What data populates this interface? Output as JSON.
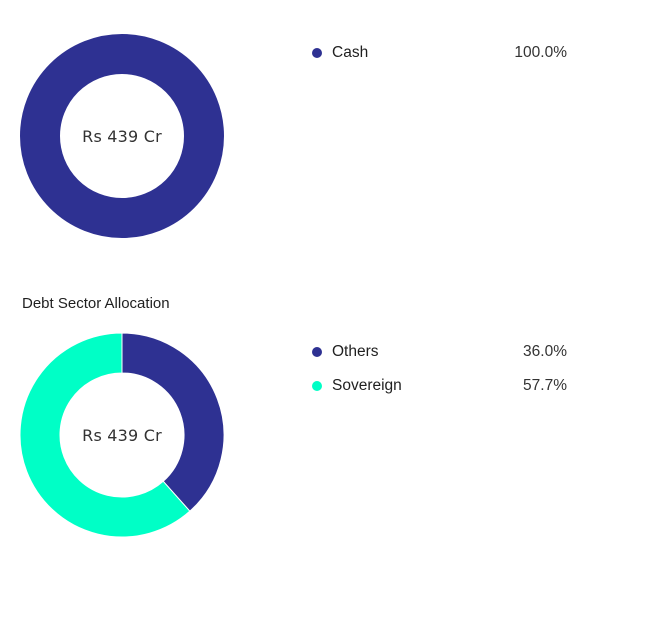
{
  "colors": {
    "navy": "#2e3192",
    "aqua": "#00ffc6",
    "background": "#ffffff"
  },
  "charts": [
    {
      "title": "",
      "center_label": "Rs 439 Cr",
      "legend": [
        {
          "label": "Cash",
          "value": "100.0%",
          "color": "#2e3192"
        }
      ]
    },
    {
      "title": "Debt Sector Allocation",
      "center_label": "Rs 439 Cr",
      "legend": [
        {
          "label": "Others",
          "value": "36.0%",
          "color": "#2e3192"
        },
        {
          "label": "Sovereign",
          "value": "57.7%",
          "color": "#00ffc6"
        }
      ]
    }
  ],
  "chart_data": [
    {
      "type": "pie",
      "variant": "donut",
      "title": "",
      "center_label": "Rs 439 Cr",
      "categories": [
        "Cash"
      ],
      "values": [
        100.0
      ],
      "colors": [
        "#2e3192"
      ],
      "legend_position": "right"
    },
    {
      "type": "pie",
      "variant": "donut",
      "title": "Debt Sector Allocation",
      "center_label": "Rs 439 Cr",
      "categories": [
        "Others",
        "Sovereign"
      ],
      "values": [
        36.0,
        57.7
      ],
      "colors": [
        "#2e3192",
        "#00ffc6"
      ],
      "legend_position": "right"
    }
  ]
}
